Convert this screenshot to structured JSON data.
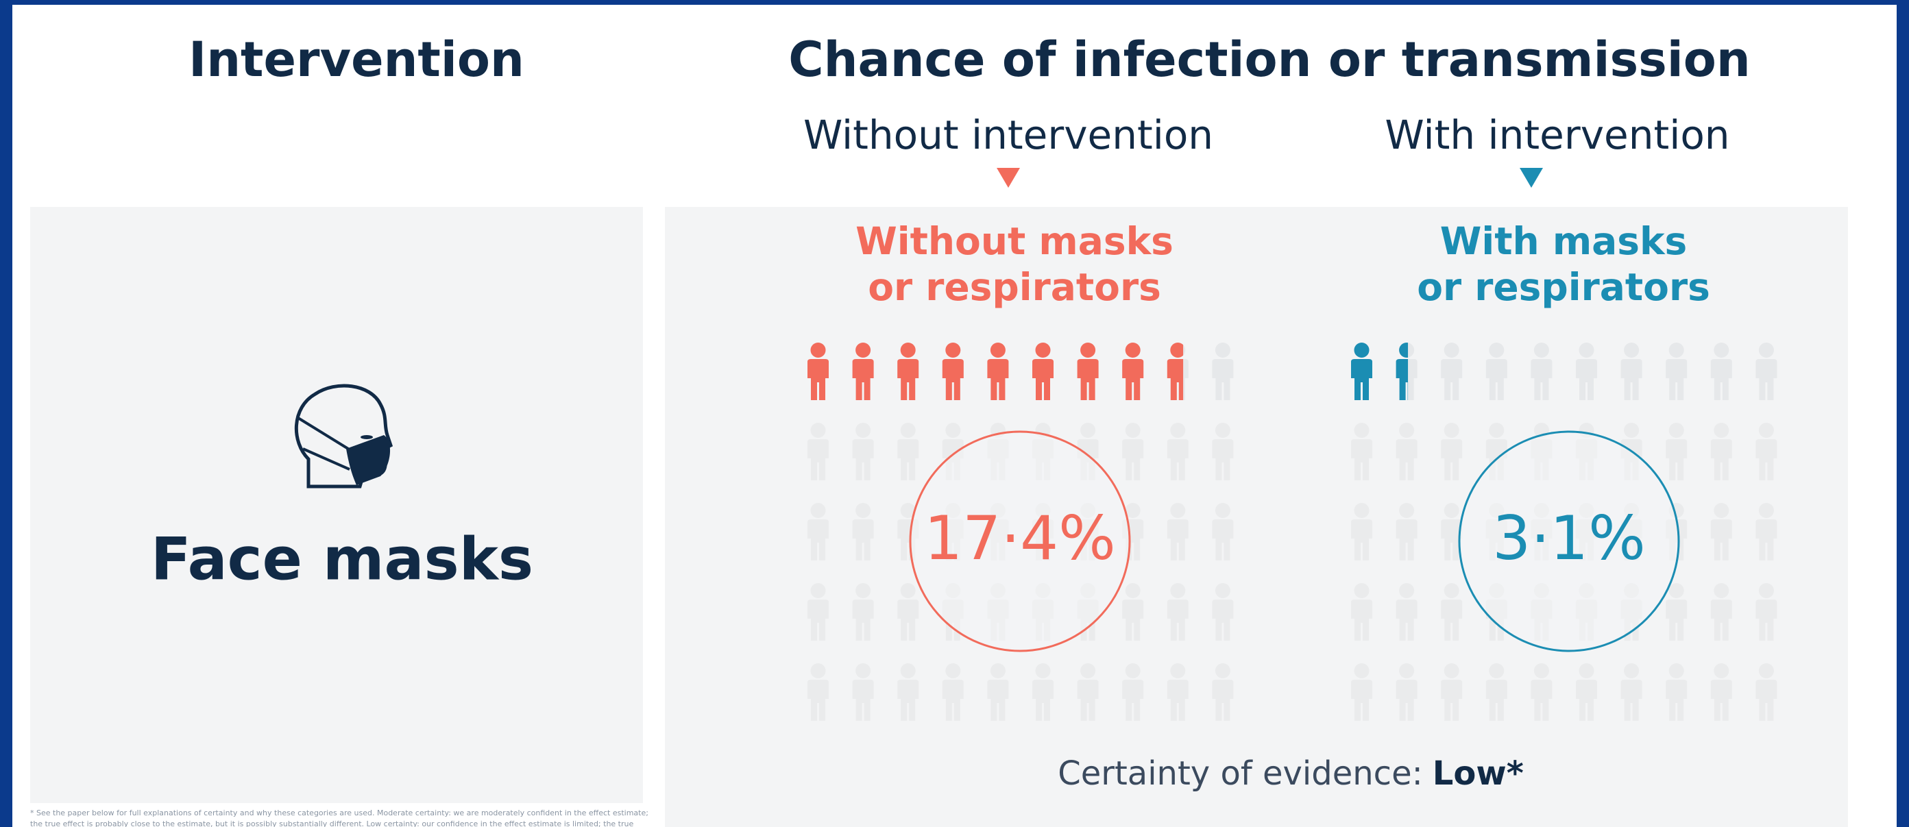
{
  "intervention": {
    "heading": "Intervention",
    "name": "Face masks"
  },
  "chart_data": {
    "type": "pictogram",
    "title": "Chance of infection or transmission",
    "series": [
      {
        "name": "Without intervention",
        "label": [
          "Without masks",
          "or respirators"
        ],
        "color": "#f26b5b",
        "values": [
          17.4
        ],
        "value_labels": [
          "17·4%"
        ]
      },
      {
        "name": "With intervention",
        "label": [
          "With masks",
          "or respirators"
        ],
        "color": "#1b8db3",
        "values": [
          3.1
        ],
        "value_labels": [
          "3·1%"
        ]
      }
    ]
  },
  "certainty": {
    "label": "Certainty of evidence:",
    "level": "Low*"
  },
  "footnote": [
    "* See the paper below for full explanations of certainty and why these categories are used. Moderate certainty: we are moderately confident in the effect estimate;",
    "the true effect is probably close to the estimate, but it is possibly substantially different. Low certainty: our confidence in the effect estimate is limited; the true"
  ]
}
